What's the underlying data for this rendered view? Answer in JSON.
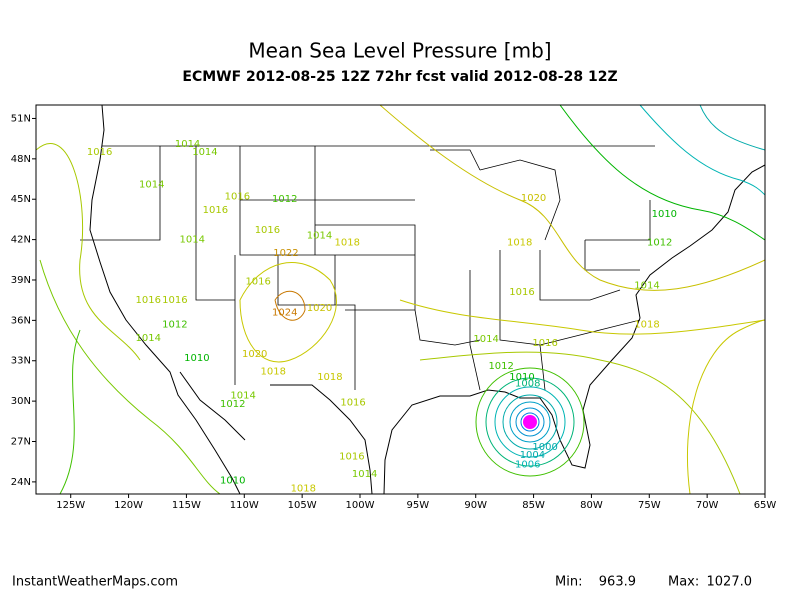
{
  "map": {
    "title": "Mean Sea Level Pressure [mb]",
    "subtitle": "ECMWF 2012-08-25 12Z 72hr fcst valid 2012-08-28 12Z",
    "lonlim": [
      -128,
      -65
    ],
    "latlim": [
      23.1,
      52
    ],
    "xticks": [
      {
        "value": -125,
        "label": "125W"
      },
      {
        "value": -120,
        "label": "120W"
      },
      {
        "value": -115,
        "label": "115W"
      },
      {
        "value": -110,
        "label": "110W"
      },
      {
        "value": -105,
        "label": "105W"
      },
      {
        "value": -100,
        "label": "100W"
      },
      {
        "value": -95,
        "label": "95W"
      },
      {
        "value": -90,
        "label": "90W"
      },
      {
        "value": -85,
        "label": "85W"
      },
      {
        "value": -80,
        "label": "80W"
      },
      {
        "value": -75,
        "label": "75W"
      },
      {
        "value": -70,
        "label": "70W"
      },
      {
        "value": -65,
        "label": "65W"
      }
    ],
    "yticks": [
      {
        "value": 51,
        "label": "51N"
      },
      {
        "value": 48,
        "label": "48N"
      },
      {
        "value": 45,
        "label": "45N"
      },
      {
        "value": 42,
        "label": "42N"
      },
      {
        "value": 39,
        "label": "39N"
      },
      {
        "value": 36,
        "label": "36N"
      },
      {
        "value": 33,
        "label": "33N"
      },
      {
        "value": 30,
        "label": "30N"
      },
      {
        "value": 27,
        "label": "27N"
      },
      {
        "value": 24,
        "label": "24N"
      }
    ],
    "contour_colors": {
      "1000": "#00aaaa",
      "1004": "#00aaaa",
      "1006": "#00b4b4",
      "1008": "#00b478",
      "1010": "#00b400",
      "1012": "#40c000",
      "1014": "#78c800",
      "1016": "#a8c800",
      "1018": "#c8c800",
      "1020": "#c8c000",
      "1022": "#c89000",
      "1024": "#c87800"
    },
    "contour_labels": [
      {
        "value": 1016,
        "lon": -122.5,
        "lat": 48.5
      },
      {
        "value": 1014,
        "lon": -114.9,
        "lat": 49.1
      },
      {
        "value": 1014,
        "lon": -113.4,
        "lat": 48.5
      },
      {
        "value": 1014,
        "lon": -118.0,
        "lat": 46.1
      },
      {
        "value": 1016,
        "lon": -110.6,
        "lat": 45.2
      },
      {
        "value": 1016,
        "lon": -112.5,
        "lat": 44.2
      },
      {
        "value": 1012,
        "lon": -106.5,
        "lat": 45.0
      },
      {
        "value": 1016,
        "lon": -108.0,
        "lat": 42.7
      },
      {
        "value": 1014,
        "lon": -114.5,
        "lat": 42.0
      },
      {
        "value": 1014,
        "lon": -103.5,
        "lat": 42.3
      },
      {
        "value": 1018,
        "lon": -101.1,
        "lat": 41.8
      },
      {
        "value": 1022,
        "lon": -106.4,
        "lat": 41.0
      },
      {
        "value": 1020,
        "lon": -85.0,
        "lat": 45.1
      },
      {
        "value": 1010,
        "lon": -73.7,
        "lat": 43.9
      },
      {
        "value": 1012,
        "lon": -74.1,
        "lat": 41.8
      },
      {
        "value": 1018,
        "lon": -86.2,
        "lat": 41.8
      },
      {
        "value": 1016,
        "lon": -108.8,
        "lat": 38.9
      },
      {
        "value": 1016,
        "lon": -86.0,
        "lat": 38.1
      },
      {
        "value": 1014,
        "lon": -75.2,
        "lat": 38.6
      },
      {
        "value": 1016,
        "lon": -118.3,
        "lat": 37.5
      },
      {
        "value": 1016,
        "lon": -116.0,
        "lat": 37.5
      },
      {
        "value": 1024,
        "lon": -106.5,
        "lat": 36.6
      },
      {
        "value": 1020,
        "lon": -103.5,
        "lat": 36.9
      },
      {
        "value": 1012,
        "lon": -116.0,
        "lat": 35.7
      },
      {
        "value": 1018,
        "lon": -75.2,
        "lat": 35.7
      },
      {
        "value": 1014,
        "lon": -118.3,
        "lat": 34.7
      },
      {
        "value": 1014,
        "lon": -89.1,
        "lat": 34.6
      },
      {
        "value": 1016,
        "lon": -84.0,
        "lat": 34.3
      },
      {
        "value": 1010,
        "lon": -114.1,
        "lat": 33.2
      },
      {
        "value": 1020,
        "lon": -109.1,
        "lat": 33.5
      },
      {
        "value": 1012,
        "lon": -87.8,
        "lat": 32.6
      },
      {
        "value": 1010,
        "lon": -86.0,
        "lat": 31.8
      },
      {
        "value": 1008,
        "lon": -85.5,
        "lat": 31.3
      },
      {
        "value": 1018,
        "lon": -107.5,
        "lat": 32.2
      },
      {
        "value": 1018,
        "lon": -102.6,
        "lat": 31.8
      },
      {
        "value": 1014,
        "lon": -110.1,
        "lat": 30.4
      },
      {
        "value": 1012,
        "lon": -111.0,
        "lat": 29.8
      },
      {
        "value": 1016,
        "lon": -100.6,
        "lat": 29.9
      },
      {
        "value": 1000,
        "lon": -84.0,
        "lat": 26.6
      },
      {
        "value": 1004,
        "lon": -85.1,
        "lat": 26.0
      },
      {
        "value": 1006,
        "lon": -85.5,
        "lat": 25.3
      },
      {
        "value": 1016,
        "lon": -100.7,
        "lat": 25.9
      },
      {
        "value": 1014,
        "lon": -99.6,
        "lat": 24.6
      },
      {
        "value": 1010,
        "lon": -111.0,
        "lat": 24.1
      },
      {
        "value": 1018,
        "lon": -104.9,
        "lat": 23.5
      }
    ]
  },
  "footer": {
    "site": "InstantWeatherMaps.com",
    "min_label": "Min:",
    "min_value": "963.9",
    "max_label": "Max:",
    "max_value": "1027.0"
  }
}
